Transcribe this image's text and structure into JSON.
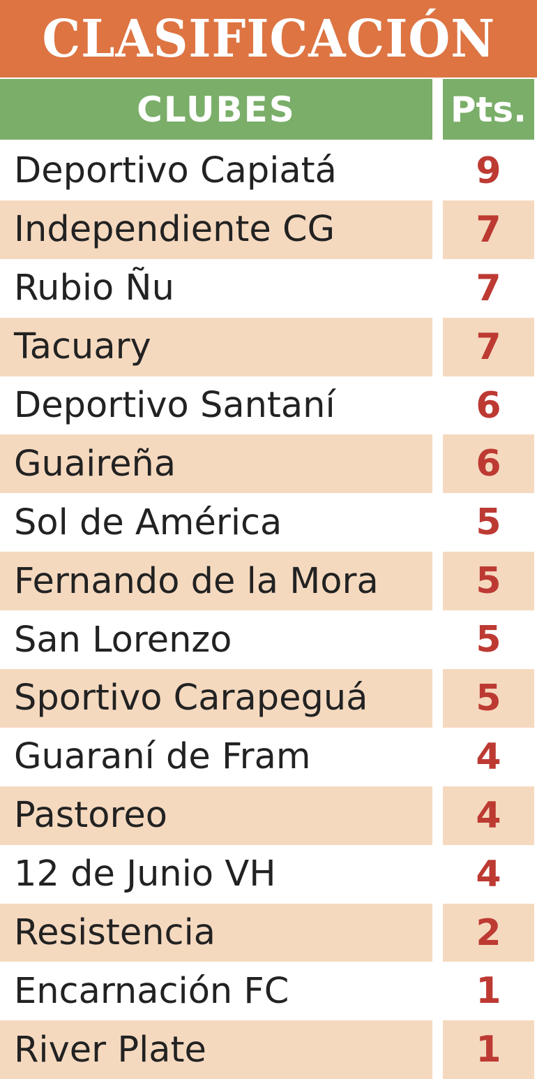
{
  "title": "CLASIFICACIÓN",
  "header": {
    "clubs": "CLUBES",
    "points": "Pts."
  },
  "colors": {
    "title_background": "#dd7442",
    "header_background": "#7aae69",
    "shaded_row": "#f5d9bf",
    "points_text": "#bd3a33"
  },
  "rows": [
    {
      "club": "Deportivo Capiatá",
      "points": "9"
    },
    {
      "club": "Independiente CG",
      "points": "7"
    },
    {
      "club": "Rubio Ñu",
      "points": "7"
    },
    {
      "club": "Tacuary",
      "points": "7"
    },
    {
      "club": "Deportivo Santaní",
      "points": "6"
    },
    {
      "club": "Guaireña",
      "points": "6"
    },
    {
      "club": "Sol de América",
      "points": "5"
    },
    {
      "club": "Fernando de la Mora",
      "points": "5"
    },
    {
      "club": "San Lorenzo",
      "points": "5"
    },
    {
      "club": "Sportivo Carapeguá",
      "points": "5"
    },
    {
      "club": "Guaraní de Fram",
      "points": "4"
    },
    {
      "club": "Pastoreo",
      "points": "4"
    },
    {
      "club": "12 de Junio VH",
      "points": "4"
    },
    {
      "club": "Resistencia",
      "points": "2"
    },
    {
      "club": "Encarnación FC",
      "points": "1"
    },
    {
      "club": "River Plate",
      "points": "1"
    }
  ]
}
